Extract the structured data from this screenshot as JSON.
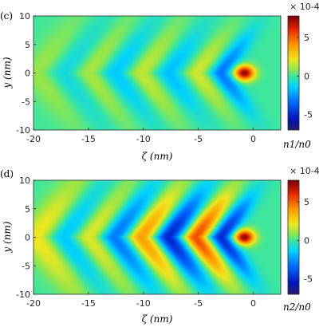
{
  "chart_data": [
    {
      "type": "heatmap",
      "panel_label": "(c)",
      "xlabel": "ζ (nm)",
      "ylabel": "y (nm)",
      "xlim": [
        -20,
        2.5
      ],
      "ylim": [
        -10,
        10
      ],
      "xticks": [
        "-20",
        "-15",
        "-10",
        "-5",
        "0"
      ],
      "yticks": [
        "10",
        "5",
        "0",
        "-5",
        "-10"
      ],
      "colorbar": {
        "label": "n1/n0",
        "multiplier": "× 10-4",
        "range": [
          -7,
          7.8
        ],
        "ticks": [
          "5",
          "0",
          "-5"
        ]
      },
      "wake": {
        "peak_value": 7.5,
        "peak_x": -0.8,
        "wavelength_nm": 4.6,
        "arms": [
          {
            "x": -3.0,
            "sign": -1,
            "amp": 3.2
          },
          {
            "x": -5.2,
            "sign": 1,
            "amp": 1.8
          },
          {
            "x": -7.8,
            "sign": -1,
            "amp": 1.8
          },
          {
            "x": -10.3,
            "sign": 1,
            "amp": 1.7
          },
          {
            "x": -12.7,
            "sign": -1,
            "amp": 1.8
          },
          {
            "x": -15.0,
            "sign": 1,
            "amp": 1.6
          },
          {
            "x": -17.3,
            "sign": -1,
            "amp": 1.4
          },
          {
            "x": -19.5,
            "sign": 1,
            "amp": 1.2
          }
        ]
      }
    },
    {
      "type": "heatmap",
      "panel_label": "(d)",
      "xlabel": "ζ (nm)",
      "ylabel": "y (nm)",
      "xlim": [
        -20,
        2.5
      ],
      "ylim": [
        -10,
        10
      ],
      "xticks": [
        "-20",
        "-15",
        "-10",
        "-5",
        "0"
      ],
      "yticks": [
        "10",
        "5",
        "0",
        "-5",
        "-10"
      ],
      "colorbar": {
        "label": "n2/n0",
        "multiplier": "× 10-4",
        "range": [
          -7,
          7.8
        ],
        "ticks": [
          "5",
          "0",
          "-5"
        ]
      },
      "wake": {
        "peak_value": 7.5,
        "peak_x": -0.8,
        "wavelength_nm": 4.6,
        "arms": [
          {
            "x": -3.0,
            "sign": -1,
            "amp": 5.0
          },
          {
            "x": -5.3,
            "sign": 1,
            "amp": 5.5
          },
          {
            "x": -7.8,
            "sign": -1,
            "amp": 5.2
          },
          {
            "x": -10.3,
            "sign": 1,
            "amp": 4.2
          },
          {
            "x": -12.7,
            "sign": -1,
            "amp": 3.6
          },
          {
            "x": -15.0,
            "sign": 1,
            "amp": 2.6
          },
          {
            "x": -17.4,
            "sign": -1,
            "amp": 2.4
          },
          {
            "x": -19.6,
            "sign": 1,
            "amp": 2.6
          }
        ]
      }
    }
  ]
}
